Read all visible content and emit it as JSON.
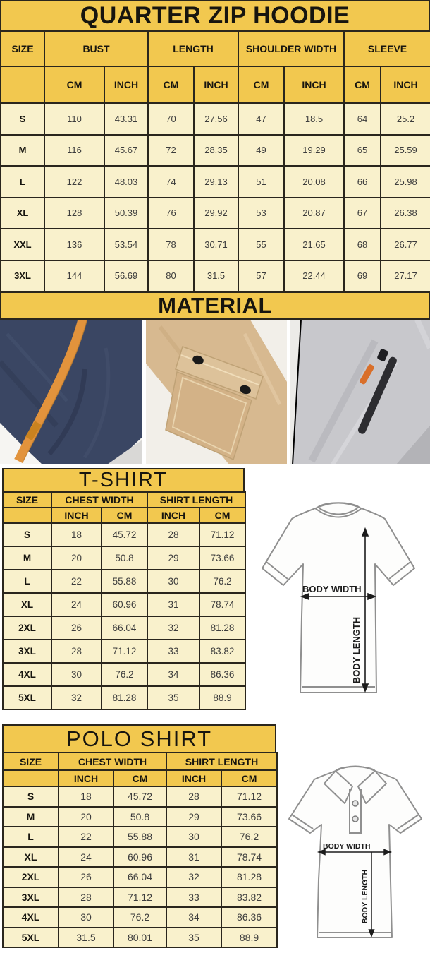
{
  "hoodie": {
    "title": "QUARTER ZIP HOODIE",
    "size_header": "SIZE",
    "groups": [
      "BUST",
      "LENGTH",
      "SHOULDER WIDTH",
      "SLEEVE"
    ],
    "units": [
      "CM",
      "INCH",
      "CM",
      "INCH",
      "CM",
      "INCH",
      "CM",
      "INCH"
    ],
    "rows": [
      [
        "S",
        "110",
        "43.31",
        "70",
        "27.56",
        "47",
        "18.5",
        "64",
        "25.2"
      ],
      [
        "M",
        "116",
        "45.67",
        "72",
        "28.35",
        "49",
        "19.29",
        "65",
        "25.59"
      ],
      [
        "L",
        "122",
        "48.03",
        "74",
        "29.13",
        "51",
        "20.08",
        "66",
        "25.98"
      ],
      [
        "XL",
        "128",
        "50.39",
        "76",
        "29.92",
        "53",
        "20.87",
        "67",
        "26.38"
      ],
      [
        "XXL",
        "136",
        "53.54",
        "78",
        "30.71",
        "55",
        "21.65",
        "68",
        "26.77"
      ],
      [
        "3XL",
        "144",
        "56.69",
        "80",
        "31.5",
        "57",
        "22.44",
        "69",
        "27.17"
      ]
    ]
  },
  "material": {
    "title": "MATERIAL",
    "photos": [
      "navy fleece with orange drawstring",
      "khaki flap pocket with snap buttons",
      "gray fleece with zip pocket"
    ]
  },
  "tshirt": {
    "title": "T-SHIRT",
    "size_header": "SIZE",
    "groups": [
      "CHEST WIDTH",
      "SHIRT LENGTH"
    ],
    "units": [
      "INCH",
      "CM",
      "INCH",
      "CM"
    ],
    "rows": [
      [
        "S",
        "18",
        "45.72",
        "28",
        "71.12"
      ],
      [
        "M",
        "20",
        "50.8",
        "29",
        "73.66"
      ],
      [
        "L",
        "22",
        "55.88",
        "30",
        "76.2"
      ],
      [
        "XL",
        "24",
        "60.96",
        "31",
        "78.74"
      ],
      [
        "2XL",
        "26",
        "66.04",
        "32",
        "81.28"
      ],
      [
        "3XL",
        "28",
        "71.12",
        "33",
        "83.82"
      ],
      [
        "4XL",
        "30",
        "76.2",
        "34",
        "86.36"
      ],
      [
        "5XL",
        "32",
        "81.28",
        "35",
        "88.9"
      ]
    ],
    "diagram": {
      "width_label": "BODY WIDTH",
      "length_label": "BODY LENGTH"
    }
  },
  "polo": {
    "title": "POLO SHIRT",
    "size_header": "SIZE",
    "groups": [
      "CHEST WIDTH",
      "SHIRT LENGTH"
    ],
    "units": [
      "INCH",
      "CM",
      "INCH",
      "CM"
    ],
    "rows": [
      [
        "S",
        "18",
        "45.72",
        "28",
        "71.12"
      ],
      [
        "M",
        "20",
        "50.8",
        "29",
        "73.66"
      ],
      [
        "L",
        "22",
        "55.88",
        "30",
        "76.2"
      ],
      [
        "XL",
        "24",
        "60.96",
        "31",
        "78.74"
      ],
      [
        "2XL",
        "26",
        "66.04",
        "32",
        "81.28"
      ],
      [
        "3XL",
        "28",
        "71.12",
        "33",
        "83.82"
      ],
      [
        "4XL",
        "30",
        "76.2",
        "34",
        "86.36"
      ],
      [
        "5XL",
        "31.5",
        "80.01",
        "35",
        "88.9"
      ]
    ],
    "diagram": {
      "width_label": "BODY WIDTH",
      "length_label": "BODY LENGTH"
    }
  },
  "colors": {
    "banner_yellow": "#f2c84f",
    "row_cream": "#f9f1cc",
    "border_dark": "#2a261d",
    "accent_orange": "#e2933c",
    "zipper_orange": "#d96f2a",
    "navy_fabric": "#3a4663",
    "khaki_fabric": "#d7b990",
    "gray_fabric": "#c8c8cc"
  }
}
